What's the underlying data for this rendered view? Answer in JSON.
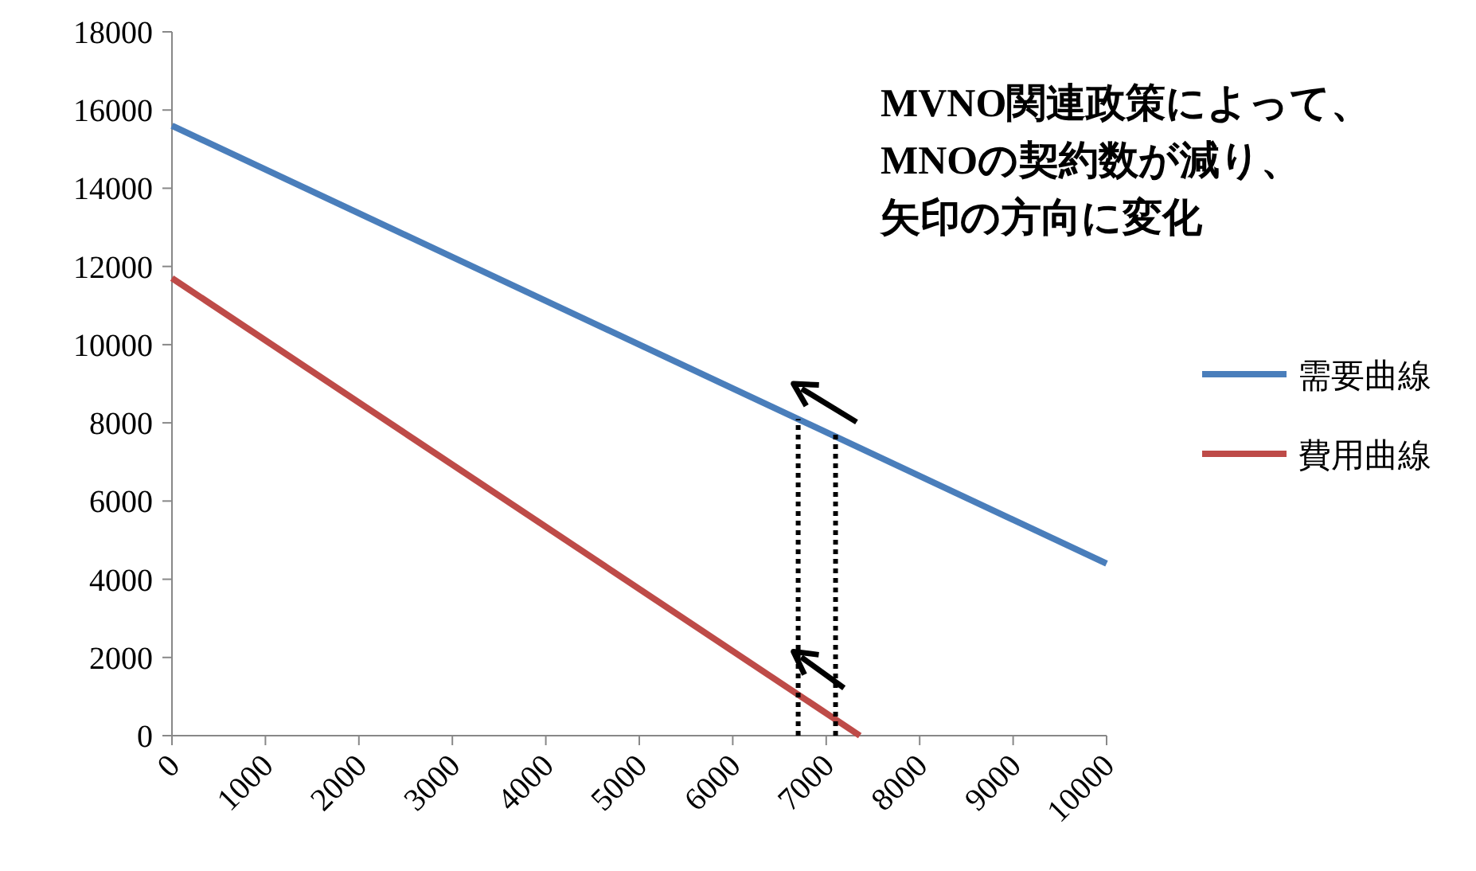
{
  "chart_data": {
    "type": "line",
    "xlim": [
      0,
      10000
    ],
    "ylim": [
      0,
      18000
    ],
    "xticks": [
      0,
      1000,
      2000,
      3000,
      4000,
      5000,
      6000,
      7000,
      8000,
      9000,
      10000
    ],
    "yticks": [
      0,
      2000,
      4000,
      6000,
      8000,
      10000,
      12000,
      14000,
      16000,
      18000
    ],
    "legend": "right",
    "series": [
      {
        "name": "需要曲線",
        "color": "#4a7ebb",
        "x": [
          0,
          10000
        ],
        "values": [
          15600,
          4400
        ]
      },
      {
        "name": "費用曲線",
        "color": "#be4b48",
        "x": [
          0,
          7360
        ],
        "values": [
          11700,
          0
        ]
      },
      {
        "color": "#000000",
        "line_style": "dotted",
        "x": [
          6700,
          6700
        ],
        "values": [
          0,
          8100
        ]
      },
      {
        "color": "#000000",
        "line_style": "dotted",
        "x": [
          7100,
          7100
        ],
        "values": [
          0,
          7800
        ]
      }
    ],
    "annotations": [
      "MVNO関連政策によって、",
      "MNOの契約数が減り、",
      "矢印の方向に変化"
    ]
  }
}
